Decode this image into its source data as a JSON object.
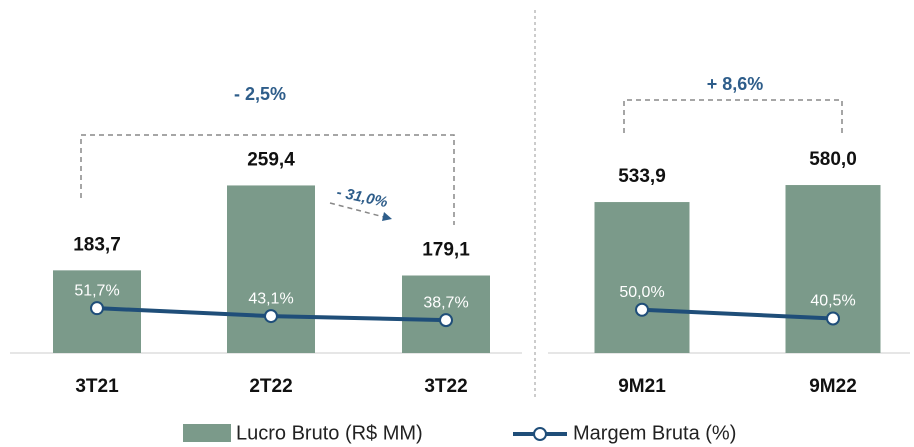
{
  "chart_data": [
    {
      "type": "bar",
      "categories": [
        "3T21",
        "2T22",
        "3T22"
      ],
      "series": [
        {
          "name": "Lucro Bruto (R$ MM)",
          "color": "#7b9a8a",
          "values": [
            183.7,
            259.4,
            179.1
          ],
          "value_labels": [
            "183,7",
            "259,4",
            "179,1"
          ]
        },
        {
          "name": "Margem Bruta (%)",
          "color": "#1f4e79",
          "axis": "y2",
          "values": [
            51.7,
            43.1,
            38.7
          ],
          "value_labels": [
            "51,7%",
            "43,1%",
            "38,7%"
          ]
        }
      ],
      "ylim": [
        110,
        398
      ],
      "y2lim": [
        3,
        354
      ],
      "annotations": [
        "- 2,5%",
        "- 31,0%"
      ]
    },
    {
      "type": "bar",
      "categories": [
        "9M21",
        "9M22"
      ],
      "series": [
        {
          "color": "#7b9a8a",
          "values": [
            533.9,
            580.0
          ],
          "value_labels": [
            "533,9",
            "580,0"
          ]
        },
        {
          "color": "#1f4e79",
          "axis": "y2",
          "values": [
            50.0,
            40.5
          ],
          "value_labels": [
            "50,0%",
            "40,5%"
          ]
        }
      ],
      "ylim": [
        125,
        1000
      ],
      "y2lim": [
        3,
        354
      ],
      "annotations": [
        "+ 8,6%"
      ]
    }
  ]
}
